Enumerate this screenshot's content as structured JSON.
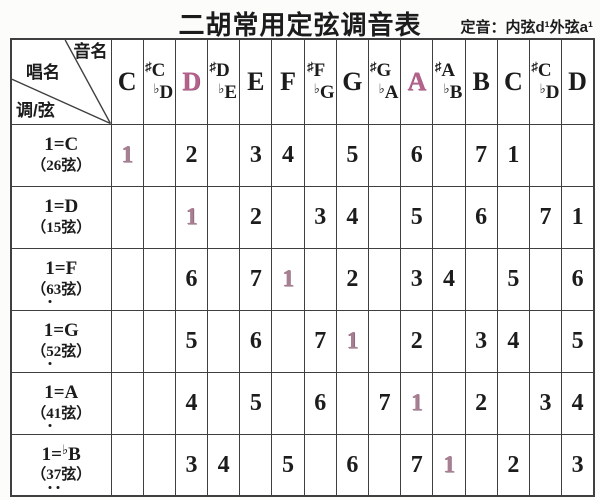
{
  "header": {
    "title": "二胡常用定弦调音表",
    "tuning": "定音：内弦d¹外弦a¹"
  },
  "colors": {
    "highlight_header": "#b4618c",
    "highlight_cell": "#a87e92",
    "text": "#1c1c1c",
    "border": "#3f3f3f"
  },
  "table": {
    "corner": {
      "top_right": "音名",
      "middle": "唱名",
      "bottom_left": "调/弦"
    },
    "note_columns": [
      {
        "natural": "C"
      },
      {
        "sharp": "C",
        "flat": "D"
      },
      {
        "natural": "D",
        "highlight": true
      },
      {
        "sharp": "D",
        "flat": "E"
      },
      {
        "natural": "E"
      },
      {
        "natural": "F"
      },
      {
        "sharp": "F",
        "flat": "G"
      },
      {
        "natural": "G"
      },
      {
        "sharp": "G",
        "flat": "A"
      },
      {
        "natural": "A",
        "highlight": true
      },
      {
        "sharp": "A",
        "flat": "B"
      },
      {
        "natural": "B"
      },
      {
        "natural": "C"
      },
      {
        "sharp": "C",
        "flat": "D"
      },
      {
        "natural": "D"
      }
    ],
    "rows": [
      {
        "key": {
          "prefix": "1=",
          "flat": "",
          "note": "C"
        },
        "strings": "26",
        "string_suffix": "弦",
        "string_dots": [],
        "highlight_col": 0,
        "cells": [
          "1",
          "",
          "2",
          "",
          "3",
          "4",
          "",
          "5",
          "",
          "6",
          "",
          "7",
          "1",
          "",
          ""
        ]
      },
      {
        "key": {
          "prefix": "1=",
          "flat": "",
          "note": "D"
        },
        "strings": "15",
        "string_suffix": "弦",
        "string_dots": [],
        "highlight_col": 2,
        "cells": [
          "",
          "",
          "1",
          "",
          "2",
          "",
          "3",
          "4",
          "",
          "5",
          "",
          "6",
          "",
          "7",
          "1"
        ]
      },
      {
        "key": {
          "prefix": "1=",
          "flat": "",
          "note": "F"
        },
        "strings": "63",
        "string_suffix": "弦",
        "string_dots": [
          0
        ],
        "highlight_col": 5,
        "cells": [
          "",
          "",
          "6",
          "",
          "7",
          "1",
          "",
          "2",
          "",
          "3",
          "4",
          "",
          "5",
          "",
          "6"
        ]
      },
      {
        "key": {
          "prefix": "1=",
          "flat": "",
          "note": "G"
        },
        "strings": "52",
        "string_suffix": "弦",
        "string_dots": [
          0
        ],
        "highlight_col": 7,
        "cells": [
          "",
          "",
          "5",
          "",
          "6",
          "",
          "7",
          "1",
          "",
          "2",
          "",
          "3",
          "4",
          "",
          "5"
        ]
      },
      {
        "key": {
          "prefix": "1=",
          "flat": "",
          "note": "A"
        },
        "strings": "41",
        "string_suffix": "弦",
        "string_dots": [
          0
        ],
        "highlight_col": 9,
        "cells": [
          "",
          "",
          "4",
          "",
          "5",
          "",
          "6",
          "",
          "7",
          "1",
          "",
          "2",
          "",
          "3",
          "4"
        ]
      },
      {
        "key": {
          "prefix": "1=",
          "flat": "♭",
          "note": "B"
        },
        "strings": "37",
        "string_suffix": "弦",
        "string_dots": [
          0,
          1
        ],
        "highlight_col": 10,
        "cells": [
          "",
          "",
          "3",
          "4",
          "",
          "5",
          "",
          "6",
          "",
          "7",
          "1",
          "",
          "2",
          "",
          "3"
        ]
      }
    ]
  }
}
